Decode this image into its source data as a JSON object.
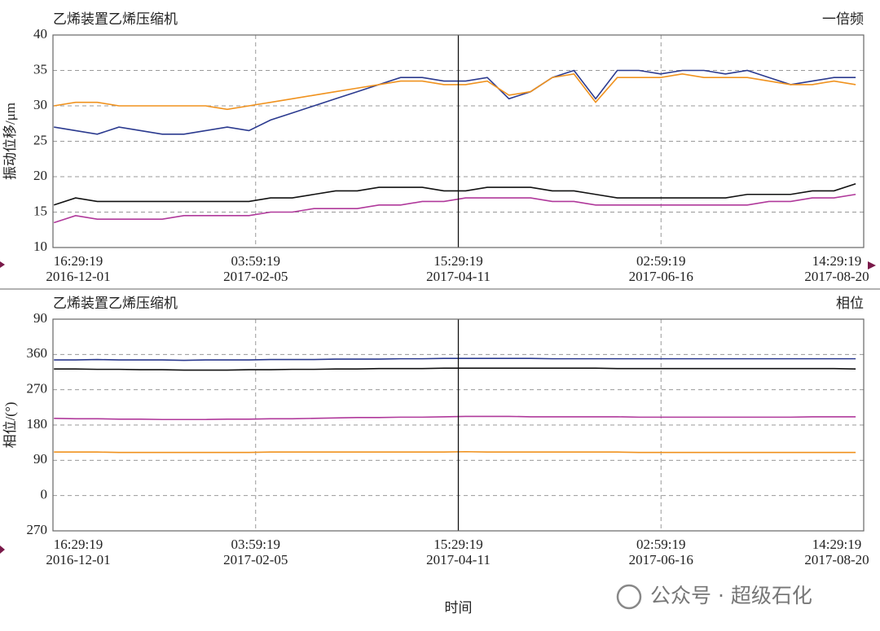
{
  "chart_data": [
    {
      "type": "line",
      "title": "乙烯装置乙烯压缩机",
      "corner_label": "一倍频",
      "y_label": "振动位移/μm",
      "x": [
        "2016-12-02",
        "2016-12-09",
        "2016-12-16",
        "2016-12-23",
        "2016-12-30",
        "2017-01-06",
        "2017-01-13",
        "2017-01-20",
        "2017-01-27",
        "2017-02-03",
        "2017-02-10",
        "2017-02-17",
        "2017-02-24",
        "2017-03-03",
        "2017-03-10",
        "2017-03-17",
        "2017-03-24",
        "2017-03-31",
        "2017-04-07",
        "2017-04-14",
        "2017-04-21",
        "2017-04-28",
        "2017-05-05",
        "2017-05-12",
        "2017-05-19",
        "2017-05-26",
        "2017-06-02",
        "2017-06-09",
        "2017-06-16",
        "2017-06-23",
        "2017-06-30",
        "2017-07-07",
        "2017-07-14",
        "2017-07-21",
        "2017-07-28",
        "2017-08-04",
        "2017-08-11",
        "2017-08-18"
      ],
      "series": [
        {
          "color": "#2b3a8f",
          "values": [
            27,
            26.5,
            26,
            27,
            26.5,
            26,
            26,
            26.5,
            27,
            26.5,
            28,
            29,
            30,
            31,
            32,
            33,
            34,
            34,
            33.5,
            33.5,
            34,
            31,
            32,
            34,
            35,
            31,
            35,
            35,
            34.5,
            35,
            35,
            34.5,
            35,
            34,
            33,
            33.5,
            34,
            34
          ]
        },
        {
          "color": "#f0921e",
          "values": [
            30,
            30.5,
            30.5,
            30,
            30,
            30,
            30,
            30,
            29.5,
            30,
            30.5,
            31,
            31.5,
            32,
            32.5,
            33,
            33.5,
            33.5,
            33,
            33,
            33.5,
            31.5,
            32,
            34,
            34.5,
            30.5,
            34,
            34,
            34,
            34.5,
            34,
            34,
            34,
            33.5,
            33,
            33,
            33.5,
            33
          ]
        },
        {
          "color": "#111111",
          "values": [
            16,
            17,
            16.5,
            16.5,
            16.5,
            16.5,
            16.5,
            16.5,
            16.5,
            16.5,
            17,
            17,
            17.5,
            18,
            18,
            18.5,
            18.5,
            18.5,
            18,
            18,
            18.5,
            18.5,
            18.5,
            18,
            18,
            17.5,
            17,
            17,
            17,
            17,
            17,
            17,
            17.5,
            17.5,
            17.5,
            18,
            18,
            19
          ]
        },
        {
          "color": "#b0399b",
          "values": [
            13.5,
            14.5,
            14,
            14,
            14,
            14,
            14.5,
            14.5,
            14.5,
            14.5,
            15,
            15,
            15.5,
            15.5,
            15.5,
            16,
            16,
            16.5,
            16.5,
            17,
            17,
            17,
            17,
            16.5,
            16.5,
            16,
            16,
            16,
            16,
            16,
            16,
            16,
            16,
            16.5,
            16.5,
            17,
            17,
            17.5
          ]
        }
      ],
      "xlim": [
        "2016-12-01 16:29:19",
        "2017-08-20 14:29:19"
      ],
      "xticks": [
        {
          "value": "2016-12-01 16:29:19",
          "label": [
            "16:29:19",
            "2016-12-01"
          ]
        },
        {
          "value": "2017-02-05 03:59:19",
          "label": [
            "03:59:19",
            "2017-02-05"
          ]
        },
        {
          "value": "2017-04-11 15:29:19",
          "label": [
            "15:29:19",
            "2017-04-11"
          ]
        },
        {
          "value": "2017-06-16 02:59:19",
          "label": [
            "02:59:19",
            "2017-06-16"
          ]
        },
        {
          "value": "2017-08-20 14:29:19",
          "label": [
            "14:29:19",
            "2017-08-20"
          ]
        }
      ],
      "cursor": "2017-04-11 15:29:19",
      "ylim": [
        10,
        40
      ],
      "yticks": [
        10,
        15,
        20,
        25,
        30,
        35,
        40
      ],
      "grid": true
    },
    {
      "type": "line",
      "title": "乙烯装置乙烯压缩机",
      "corner_label": "相位",
      "y_label": "相位/(°)",
      "x_label": "时间",
      "x": [
        "2016-12-02",
        "2016-12-09",
        "2016-12-16",
        "2016-12-23",
        "2016-12-30",
        "2017-01-06",
        "2017-01-13",
        "2017-01-20",
        "2017-01-27",
        "2017-02-03",
        "2017-02-10",
        "2017-02-17",
        "2017-02-24",
        "2017-03-03",
        "2017-03-10",
        "2017-03-17",
        "2017-03-24",
        "2017-03-31",
        "2017-04-07",
        "2017-04-14",
        "2017-04-21",
        "2017-04-28",
        "2017-05-05",
        "2017-05-12",
        "2017-05-19",
        "2017-05-26",
        "2017-06-02",
        "2017-06-09",
        "2017-06-16",
        "2017-06-23",
        "2017-06-30",
        "2017-07-07",
        "2017-07-14",
        "2017-07-21",
        "2017-07-28",
        "2017-08-04",
        "2017-08-11",
        "2017-08-18"
      ],
      "series": [
        {
          "color": "#2b3a8f",
          "values": [
            346,
            346,
            347,
            346,
            346,
            346,
            345,
            346,
            346,
            346,
            347,
            347,
            347,
            348,
            348,
            348,
            349,
            349,
            350,
            350,
            350,
            350,
            350,
            349,
            349,
            349,
            349,
            349,
            349,
            349,
            349,
            349,
            349,
            349,
            349,
            349,
            349,
            349
          ]
        },
        {
          "color": "#111111",
          "values": [
            323,
            323,
            322,
            322,
            321,
            321,
            320,
            320,
            320,
            321,
            321,
            322,
            322,
            323,
            323,
            324,
            324,
            324,
            325,
            325,
            325,
            325,
            325,
            325,
            325,
            325,
            324,
            324,
            324,
            324,
            324,
            324,
            324,
            324,
            324,
            324,
            324,
            323
          ]
        },
        {
          "color": "#b0399b",
          "values": [
            197,
            196,
            196,
            195,
            195,
            194,
            194,
            194,
            195,
            195,
            196,
            196,
            197,
            198,
            199,
            199,
            200,
            200,
            201,
            202,
            202,
            202,
            201,
            201,
            201,
            201,
            201,
            200,
            200,
            200,
            200,
            200,
            200,
            200,
            200,
            201,
            201,
            201
          ]
        },
        {
          "color": "#f0921e",
          "values": [
            111,
            111,
            111,
            110,
            110,
            110,
            110,
            110,
            110,
            110,
            111,
            111,
            111,
            111,
            111,
            111,
            111,
            111,
            111,
            112,
            111,
            111,
            111,
            111,
            111,
            111,
            111,
            110,
            110,
            110,
            110,
            110,
            110,
            110,
            110,
            110,
            110,
            110
          ]
        }
      ],
      "xlim": [
        "2016-12-01 16:29:19",
        "2017-08-20 14:29:19"
      ],
      "xticks": [
        {
          "value": "2016-12-01 16:29:19",
          "label": [
            "16:29:19",
            "2016-12-01"
          ]
        },
        {
          "value": "2017-02-05 03:59:19",
          "label": [
            "03:59:19",
            "2017-02-05"
          ]
        },
        {
          "value": "2017-04-11 15:29:19",
          "label": [
            "15:29:19",
            "2017-04-11"
          ]
        },
        {
          "value": "2017-06-16 02:59:19",
          "label": [
            "02:59:19",
            "2017-06-16"
          ]
        },
        {
          "value": "2017-08-20 14:29:19",
          "label": [
            "14:29:19",
            "2017-08-20"
          ]
        }
      ],
      "cursor": "2017-04-11 15:29:19",
      "ylim": [
        -90,
        450
      ],
      "yticks": [
        {
          "value": -90,
          "label": "270"
        },
        0,
        90,
        180,
        270,
        360,
        {
          "value": 450,
          "label": "90"
        }
      ],
      "grid": true
    }
  ],
  "watermark": "公众号 · 超级石化"
}
